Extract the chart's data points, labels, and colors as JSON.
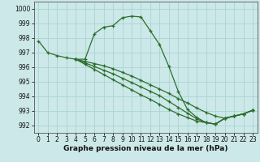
{
  "lines": [
    {
      "x": [
        0,
        1,
        2,
        3,
        4,
        5,
        6,
        7,
        8,
        9,
        10,
        11,
        12,
        13,
        14,
        15,
        16,
        17,
        18,
        19,
        20,
        21,
        22,
        23
      ],
      "y": [
        997.8,
        997.0,
        996.8,
        996.65,
        996.55,
        996.55,
        998.3,
        998.75,
        998.85,
        999.4,
        999.5,
        999.45,
        998.5,
        997.55,
        996.05,
        994.35,
        993.1,
        992.55,
        992.2,
        992.1,
        992.5,
        992.65,
        992.8,
        993.05
      ]
    },
    {
      "x": [
        4,
        5,
        6,
        7,
        8,
        9,
        10,
        11,
        12,
        13,
        14,
        15,
        16,
        17,
        18,
        19,
        20,
        21,
        22,
        23
      ],
      "y": [
        996.55,
        996.4,
        996.25,
        996.1,
        995.9,
        995.65,
        995.4,
        995.1,
        994.8,
        994.5,
        994.2,
        993.85,
        993.55,
        993.2,
        992.9,
        992.65,
        992.5,
        992.65,
        992.8,
        993.05
      ]
    },
    {
      "x": [
        4,
        5,
        6,
        7,
        8,
        9,
        10,
        11,
        12,
        13,
        14,
        15,
        16,
        17,
        18,
        19,
        20,
        21,
        22,
        23
      ],
      "y": [
        996.55,
        996.3,
        996.05,
        995.8,
        995.55,
        995.25,
        994.95,
        994.65,
        994.35,
        994.05,
        993.65,
        993.25,
        992.85,
        992.45,
        992.2,
        992.1,
        992.5,
        992.65,
        992.8,
        993.05
      ]
    },
    {
      "x": [
        4,
        5,
        6,
        7,
        8,
        9,
        10,
        11,
        12,
        13,
        14,
        15,
        16,
        17,
        18,
        19,
        20,
        21,
        22,
        23
      ],
      "y": [
        996.55,
        996.2,
        995.85,
        995.5,
        995.15,
        994.8,
        994.45,
        994.1,
        993.8,
        993.45,
        993.1,
        992.8,
        992.55,
        992.3,
        992.2,
        992.1,
        992.5,
        992.65,
        992.8,
        993.05
      ]
    }
  ],
  "line_color": "#2d6e2d",
  "marker": "+",
  "markersize": 3.5,
  "markerwidth": 0.9,
  "linewidth": 0.9,
  "bg_color": "#cce8e8",
  "grid_color": "#aad4d4",
  "xlabel": "Graphe pression niveau de la mer (hPa)",
  "xlabel_fontsize": 6.5,
  "xlabel_bold": true,
  "tick_fontsize": 5.5,
  "ylim": [
    991.5,
    1000.5
  ],
  "xlim": [
    -0.5,
    23.5
  ],
  "yticks": [
    992,
    993,
    994,
    995,
    996,
    997,
    998,
    999,
    1000
  ],
  "xticks": [
    0,
    1,
    2,
    3,
    4,
    5,
    6,
    7,
    8,
    9,
    10,
    11,
    12,
    13,
    14,
    15,
    16,
    17,
    18,
    19,
    20,
    21,
    22,
    23
  ]
}
